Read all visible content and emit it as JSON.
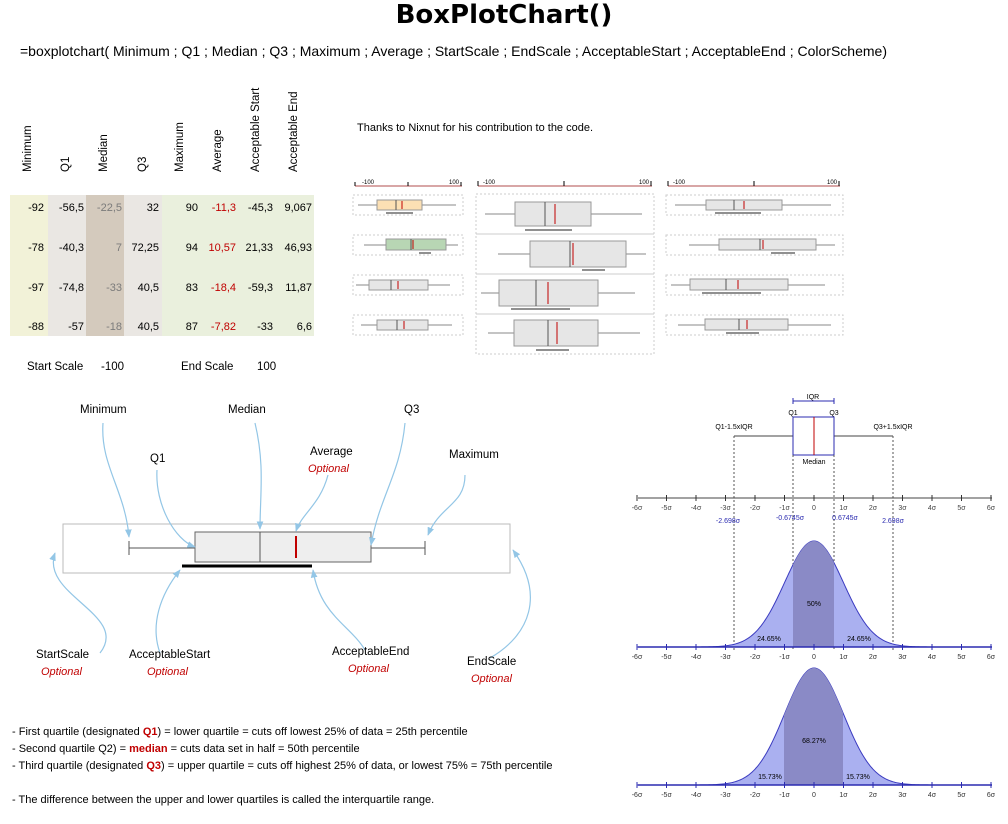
{
  "title": "BoxPlotChart()",
  "formula": "=boxplotchart( Minimum ; Q1 ; Median ; Q3 ; Maximum ; Average ; StartScale ; EndScale ; AcceptableStart ; AcceptableEnd ; ColorScheme)",
  "thanks": "Thanks to Nixnut for his contribution to the code.",
  "table": {
    "headers": [
      "Minimum",
      "Q1",
      "Median",
      "Q3",
      "Maximum",
      "Average",
      "Acceptable Start",
      "Acceptable End"
    ],
    "rows": [
      [
        "-92",
        "-56,5",
        "-22,5",
        "32",
        "90",
        "-11,3",
        "-45,3",
        "9,067"
      ],
      [
        "-78",
        "-40,3",
        "7",
        "72,25",
        "94",
        "10,57",
        "21,33",
        "46,93"
      ],
      [
        "-97",
        "-74,8",
        "-33",
        "40,5",
        "83",
        "-18,4",
        "-59,3",
        "11,87"
      ],
      [
        "-88",
        "-57",
        "-18",
        "40,5",
        "87",
        "-7,82",
        "-33",
        "6,6"
      ]
    ],
    "colors": {
      "min": "#f2f2d8",
      "median": "#d4cabd",
      "rest": "#eaf0dd",
      "q1": "#eae7e3",
      "average_text": "#c00000"
    }
  },
  "scale": {
    "start_label": "Start Scale",
    "start_value": "-100",
    "end_label": "End Scale",
    "end_value": "100"
  },
  "diagram": {
    "labels": {
      "minimum": "Minimum",
      "median": "Median",
      "q3": "Q3",
      "q1": "Q1",
      "average": "Average",
      "maximum": "Maximum",
      "start_scale": "StartScale",
      "acceptable_start": "AcceptableStart",
      "acceptable_end": "AcceptableEnd",
      "end_scale": "EndScale"
    },
    "optional": "Optional",
    "arrow_color": "#93c6e6"
  },
  "bullets": [
    {
      "pre": "- First quartile (designated ",
      "kw": "Q1",
      "post": ") = lower quartile = cuts off lowest 25% of data = 25th percentile"
    },
    {
      "pre": "- Second quartile  Q2) = ",
      "kw": "median",
      "post": " = cuts data set in half = 50th percentile"
    },
    {
      "pre": "- Third quartile (designated ",
      "kw": "Q3",
      "post": ") = upper quartile = cuts off highest 25% of data, or lowest 75% = 75th percentile"
    },
    {
      "pre": "- The difference between the upper and lower quartiles is called the interquartile range.",
      "kw": "",
      "post": ""
    }
  ],
  "normal": {
    "iqr": "IQR",
    "q1": "Q1",
    "q3": "Q3",
    "median": "Median",
    "lower_fence": "Q1-1.5xIQR",
    "upper_fence": "Q3+1.5xIQR",
    "axis_ticks": [
      "-6σ",
      "-5σ",
      "-4σ",
      "-3σ",
      "-2σ",
      "-1σ",
      "0",
      "1σ",
      "2σ",
      "3σ",
      "4σ",
      "5σ",
      "6σ"
    ],
    "z_values": [
      "-2.698σ",
      "-0.6745σ",
      "0.6745σ",
      "2.698σ"
    ],
    "pct_center": "50%",
    "pct_left": "24.65%",
    "pct_right": "24.65%",
    "pct_center2": "68.27%",
    "pct_left2": "15.73%",
    "pct_right2": "15.73%",
    "curve_fill": "#aab0f0",
    "curve_dark": "#8a8ac6",
    "axis_color": "#2b2bb0"
  },
  "colors": {
    "box_orange": "#fce0b4",
    "box_green": "#b8d6b4",
    "box_grey": "#e6e6e6",
    "median_line": "#c00000"
  }
}
